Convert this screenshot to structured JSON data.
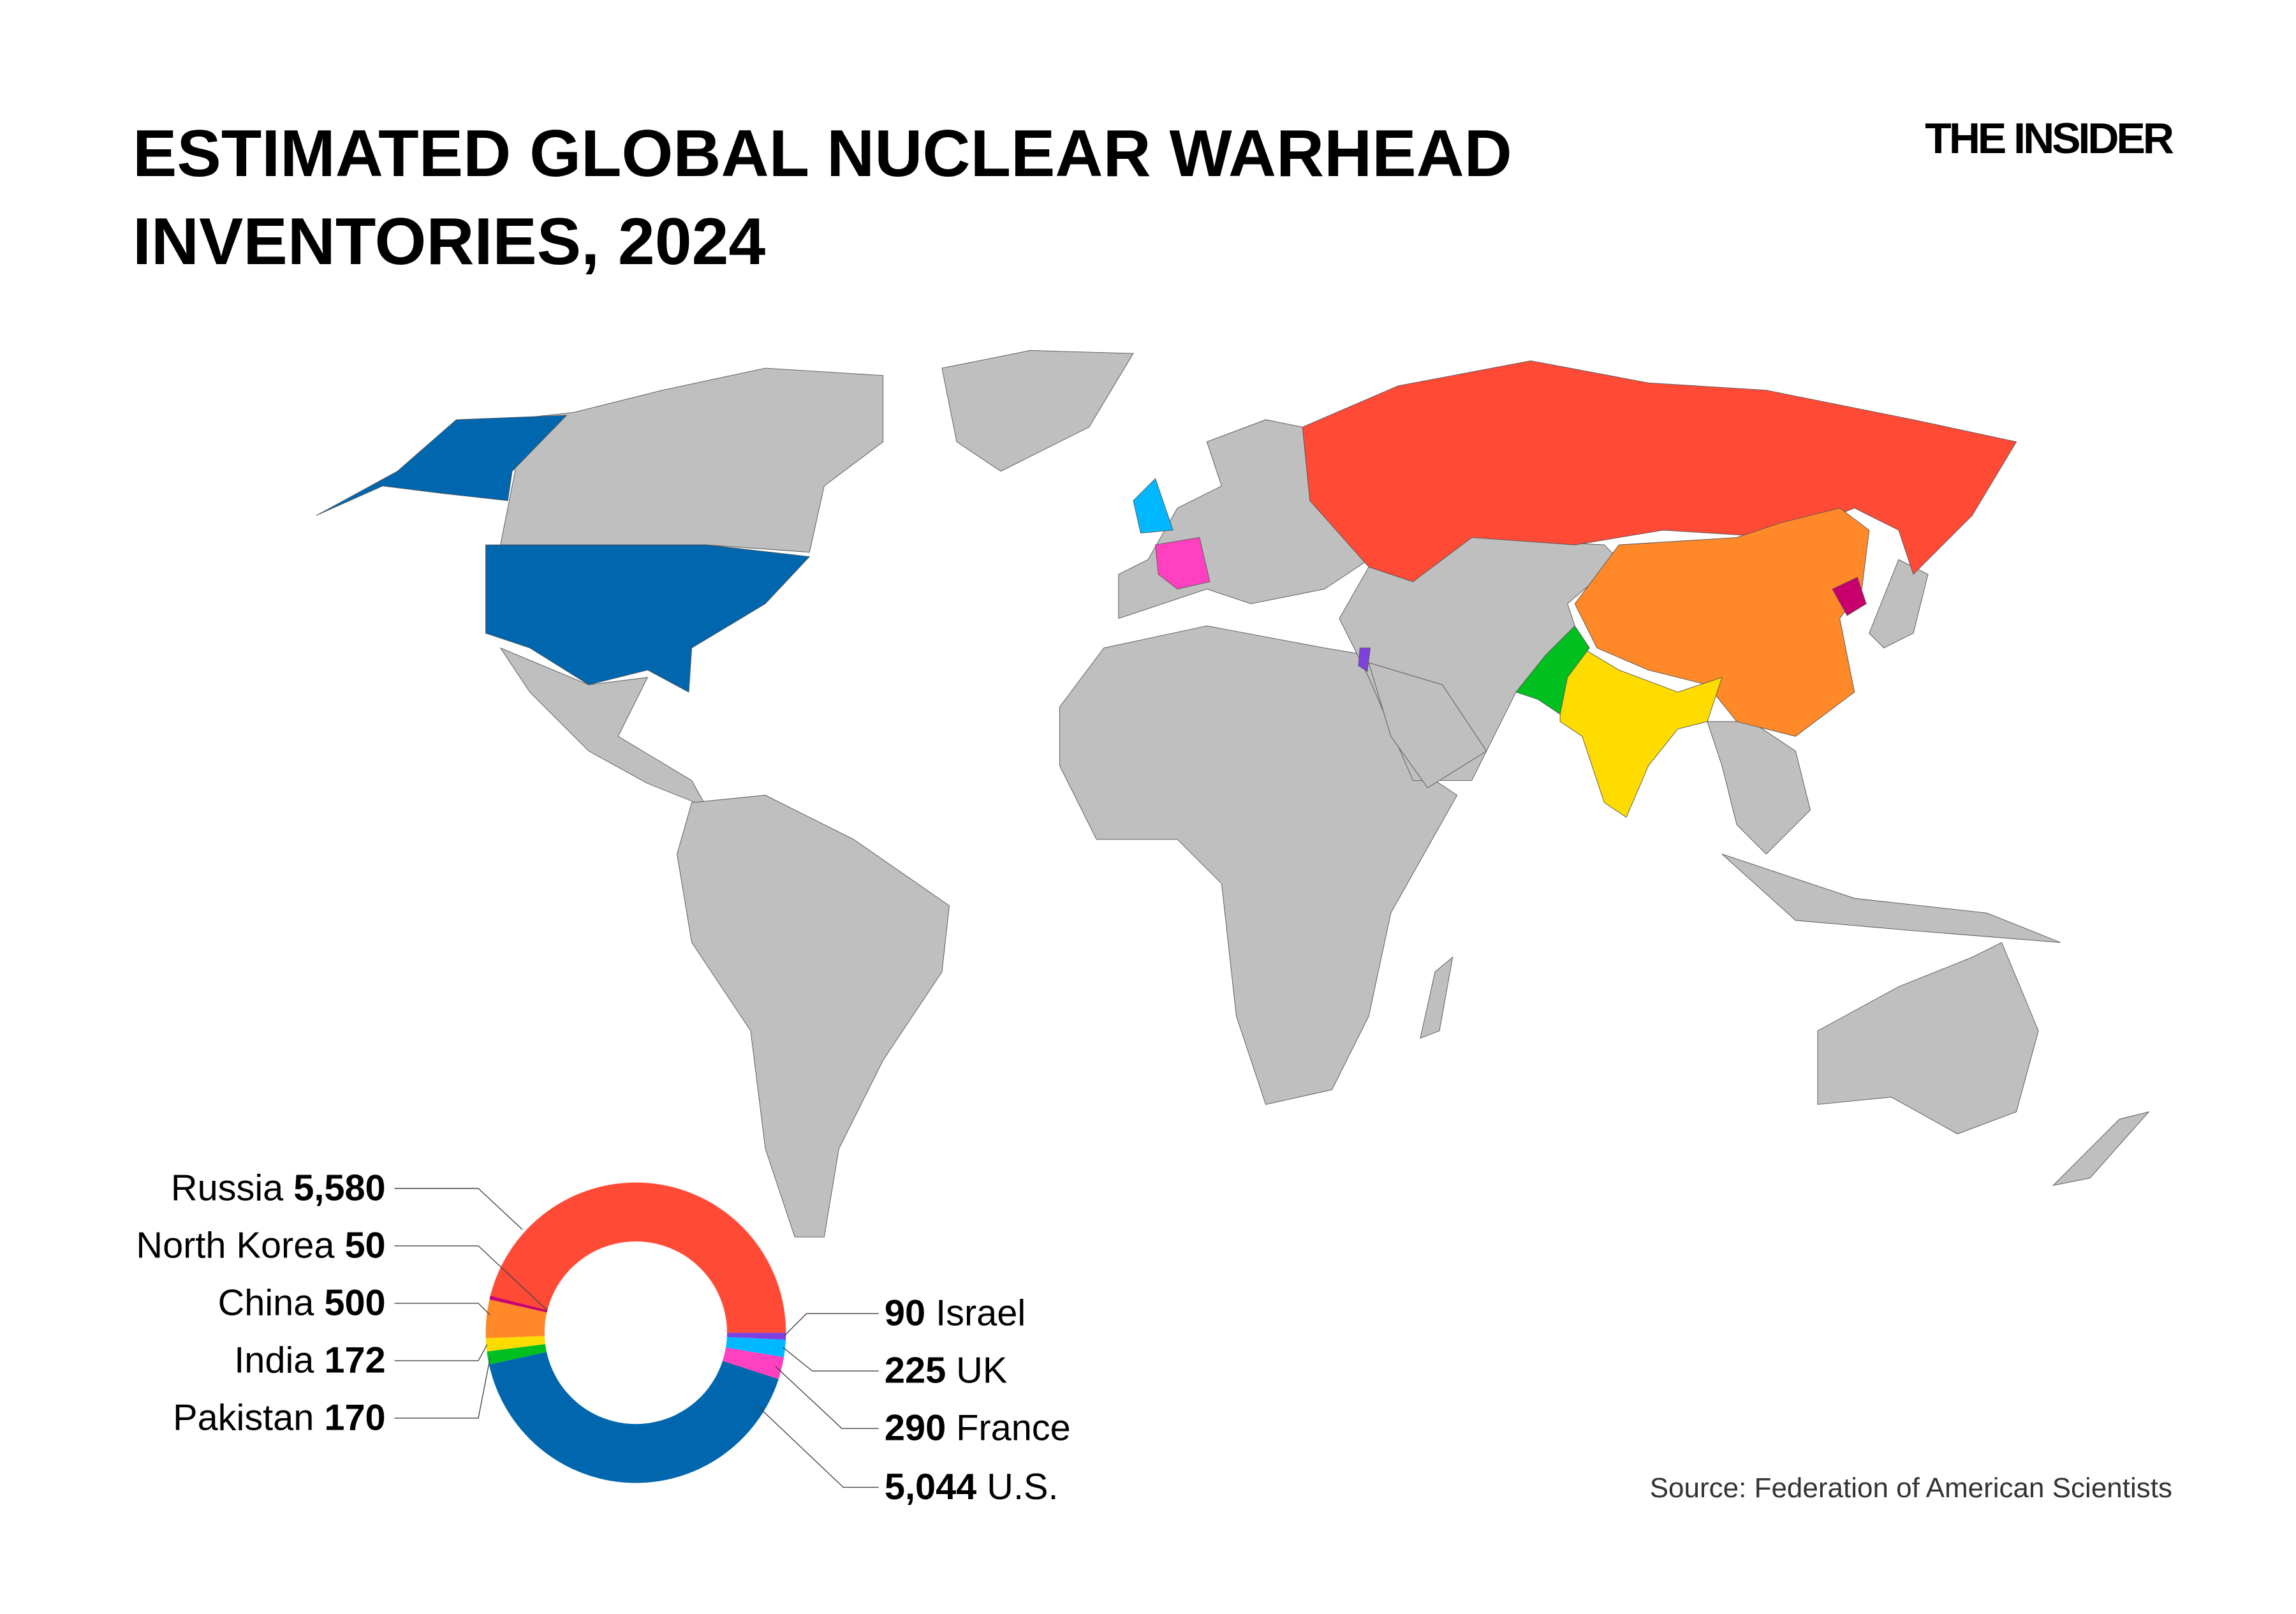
{
  "title_line1": "ESTIMATED GLOBAL NUCLEAR WARHEAD",
  "title_line2": "INVENTORIES, 2024",
  "logo": "THE INSIDER",
  "source": "Source: Federation of American Scientists",
  "colors": {
    "land": "#bfbfbf",
    "background": "#ffffff"
  },
  "chart_data": {
    "type": "pie",
    "variant": "donut",
    "title": "ESTIMATED GLOBAL NUCLEAR WARHEAD INVENTORIES, 2024",
    "unit": "warheads",
    "slices": [
      {
        "name": "Russia",
        "value": 5580,
        "label": "5,580",
        "color": "#ff4a36",
        "side": "left"
      },
      {
        "name": "North Korea",
        "value": 50,
        "label": "50",
        "color": "#c8006e",
        "side": "left"
      },
      {
        "name": "China",
        "value": 500,
        "label": "500",
        "color": "#ff8828",
        "side": "left"
      },
      {
        "name": "India",
        "value": 172,
        "label": "172",
        "color": "#ffdc00",
        "side": "left"
      },
      {
        "name": "Pakistan",
        "value": 170,
        "label": "170",
        "color": "#00c020",
        "side": "left"
      },
      {
        "name": "U.S.",
        "value": 5044,
        "label": "5,044",
        "color": "#0066ae",
        "side": "right"
      },
      {
        "name": "France",
        "value": 290,
        "label": "290",
        "color": "#ff40c0",
        "side": "right"
      },
      {
        "name": "UK",
        "value": 225,
        "label": "225",
        "color": "#00b8ff",
        "side": "right"
      },
      {
        "name": "Israel",
        "value": 90,
        "label": "90",
        "color": "#8040e0",
        "side": "right"
      }
    ]
  },
  "map": {
    "type": "choropleth-world",
    "highlighted": [
      "U.S.",
      "Russia",
      "China",
      "France",
      "UK",
      "India",
      "Pakistan",
      "Israel",
      "North Korea"
    ]
  }
}
